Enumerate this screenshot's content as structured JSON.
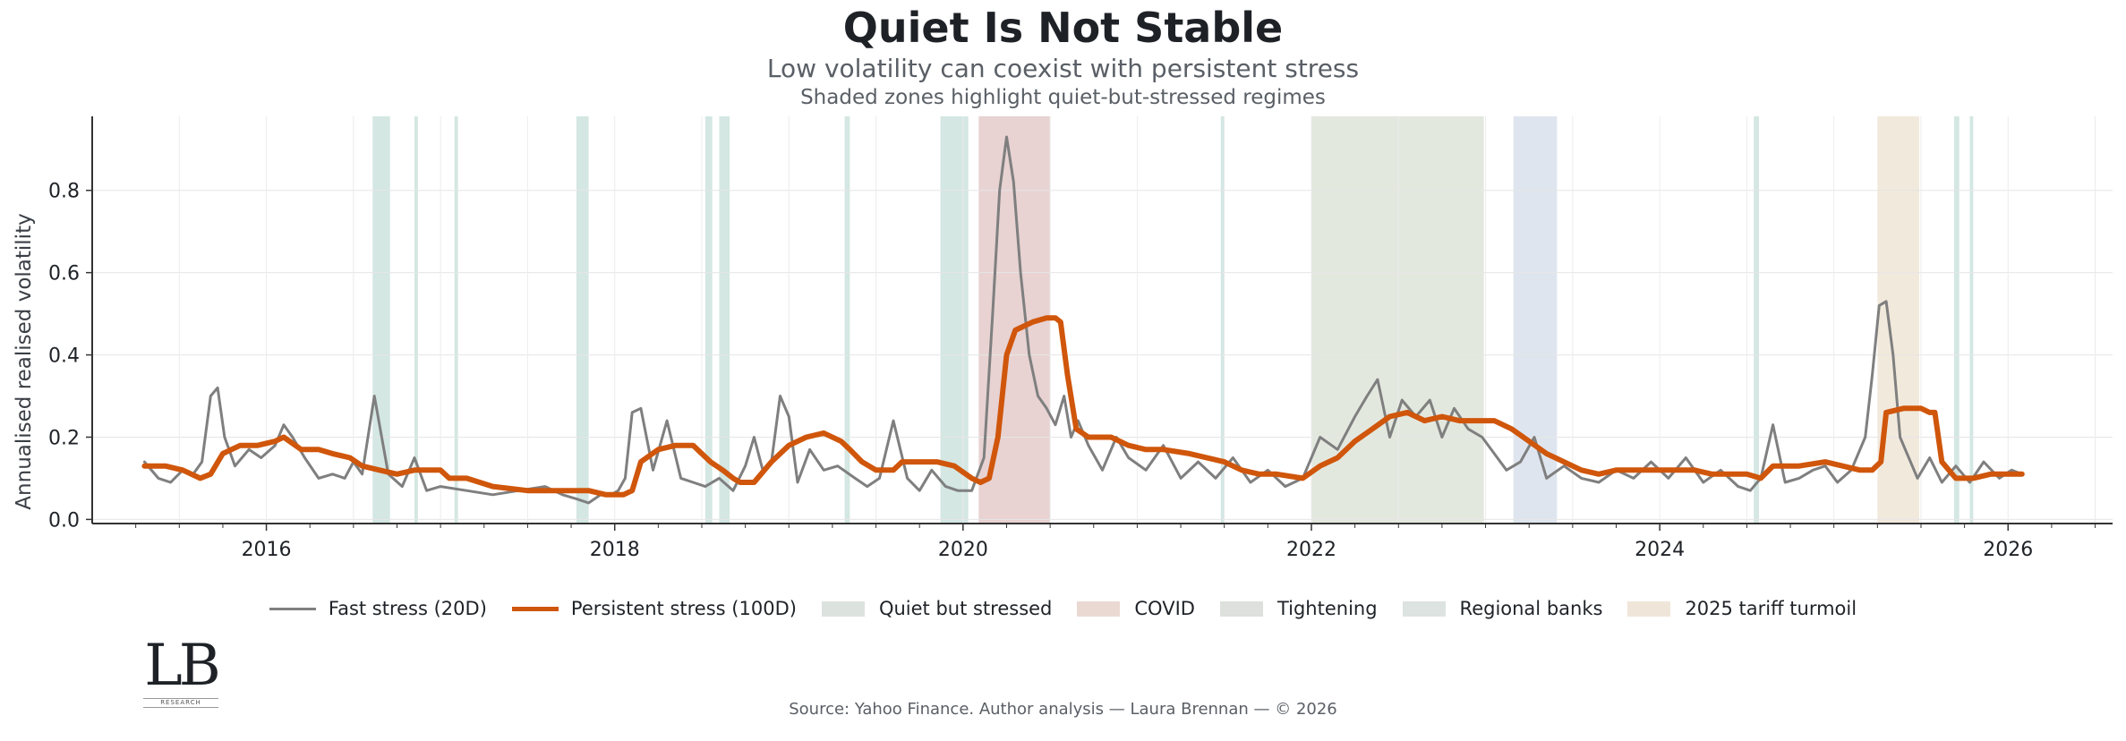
{
  "header": {
    "title": "Quiet Is Not Stable",
    "subtitle": "Low volatility can coexist with persistent stress",
    "subsubtitle": "Shaded zones highlight quiet-but-stressed regimes"
  },
  "chart_data": {
    "type": "line",
    "ylabel": "Annualised realised volatility",
    "xlabel": "",
    "xlim": [
      2015.0,
      2026.6
    ],
    "ylim": [
      -0.01,
      0.98
    ],
    "xticks": [
      2016,
      2018,
      2020,
      2022,
      2024,
      2026
    ],
    "xtick_labels": [
      "2016",
      "2018",
      "2020",
      "2022",
      "2024",
      "2026"
    ],
    "yticks": [
      0.0,
      0.2,
      0.4,
      0.6,
      0.8
    ],
    "ytick_labels": [
      "0.0",
      "0.2",
      "0.4",
      "0.6",
      "0.8"
    ],
    "grid": true,
    "series": [
      {
        "name": "Fast stress (20D)",
        "color": "#7f7f7f",
        "x": [
          2015.3,
          2015.38,
          2015.45,
          2015.52,
          2015.58,
          2015.63,
          2015.68,
          2015.72,
          2015.76,
          2015.82,
          2015.9,
          2015.97,
          2016.05,
          2016.1,
          2016.15,
          2016.22,
          2016.3,
          2016.38,
          2016.45,
          2016.5,
          2016.55,
          2016.62,
          2016.7,
          2016.78,
          2016.85,
          2016.92,
          2017.0,
          2017.15,
          2017.3,
          2017.45,
          2017.6,
          2017.7,
          2017.78,
          2017.85,
          2017.92,
          2017.98,
          2018.02,
          2018.06,
          2018.1,
          2018.15,
          2018.22,
          2018.3,
          2018.38,
          2018.45,
          2018.52,
          2018.6,
          2018.68,
          2018.75,
          2018.8,
          2018.85,
          2018.9,
          2018.95,
          2019.0,
          2019.05,
          2019.12,
          2019.2,
          2019.28,
          2019.38,
          2019.45,
          2019.52,
          2019.6,
          2019.68,
          2019.75,
          2019.82,
          2019.9,
          2019.97,
          2020.05,
          2020.12,
          2020.17,
          2020.21,
          2020.25,
          2020.29,
          2020.33,
          2020.38,
          2020.43,
          2020.48,
          2020.53,
          2020.58,
          2020.62,
          2020.66,
          2020.72,
          2020.8,
          2020.88,
          2020.95,
          2021.05,
          2021.15,
          2021.25,
          2021.35,
          2021.45,
          2021.55,
          2021.65,
          2021.75,
          2021.85,
          2021.95,
          2022.05,
          2022.15,
          2022.25,
          2022.32,
          2022.38,
          2022.45,
          2022.52,
          2022.6,
          2022.68,
          2022.75,
          2022.82,
          2022.9,
          2022.98,
          2023.05,
          2023.12,
          2023.2,
          2023.28,
          2023.35,
          2023.45,
          2023.55,
          2023.65,
          2023.75,
          2023.85,
          2023.95,
          2024.05,
          2024.15,
          2024.25,
          2024.35,
          2024.45,
          2024.52,
          2024.58,
          2024.65,
          2024.72,
          2024.8,
          2024.88,
          2024.95,
          2025.02,
          2025.1,
          2025.18,
          2025.22,
          2025.26,
          2025.3,
          2025.34,
          2025.38,
          2025.42,
          2025.48,
          2025.55,
          2025.62,
          2025.7,
          2025.78,
          2025.86,
          2025.95,
          2026.02,
          2026.08
        ],
        "values": [
          0.14,
          0.1,
          0.09,
          0.12,
          0.11,
          0.14,
          0.3,
          0.32,
          0.2,
          0.13,
          0.17,
          0.15,
          0.18,
          0.23,
          0.2,
          0.15,
          0.1,
          0.11,
          0.1,
          0.14,
          0.11,
          0.3,
          0.11,
          0.08,
          0.15,
          0.07,
          0.08,
          0.07,
          0.06,
          0.07,
          0.08,
          0.06,
          0.05,
          0.04,
          0.06,
          0.06,
          0.07,
          0.1,
          0.26,
          0.27,
          0.12,
          0.24,
          0.1,
          0.09,
          0.08,
          0.1,
          0.07,
          0.13,
          0.2,
          0.12,
          0.14,
          0.3,
          0.25,
          0.09,
          0.17,
          0.12,
          0.13,
          0.1,
          0.08,
          0.1,
          0.24,
          0.1,
          0.07,
          0.12,
          0.08,
          0.07,
          0.07,
          0.15,
          0.5,
          0.8,
          0.93,
          0.82,
          0.6,
          0.4,
          0.3,
          0.27,
          0.23,
          0.3,
          0.2,
          0.24,
          0.18,
          0.12,
          0.2,
          0.15,
          0.12,
          0.18,
          0.1,
          0.14,
          0.1,
          0.15,
          0.09,
          0.12,
          0.08,
          0.1,
          0.2,
          0.17,
          0.25,
          0.3,
          0.34,
          0.2,
          0.29,
          0.25,
          0.29,
          0.2,
          0.27,
          0.22,
          0.2,
          0.16,
          0.12,
          0.14,
          0.2,
          0.1,
          0.13,
          0.1,
          0.09,
          0.12,
          0.1,
          0.14,
          0.1,
          0.15,
          0.09,
          0.12,
          0.08,
          0.07,
          0.1,
          0.23,
          0.09,
          0.1,
          0.12,
          0.13,
          0.09,
          0.12,
          0.2,
          0.35,
          0.52,
          0.53,
          0.4,
          0.2,
          0.16,
          0.1,
          0.15,
          0.09,
          0.13,
          0.09,
          0.14,
          0.1,
          0.12,
          0.11
        ]
      },
      {
        "name": "Persistent stress (100D)",
        "color": "#d0560b",
        "x": [
          2015.3,
          2015.42,
          2015.52,
          2015.62,
          2015.68,
          2015.75,
          2015.85,
          2015.95,
          2016.05,
          2016.1,
          2016.2,
          2016.3,
          2016.38,
          2016.48,
          2016.55,
          2016.65,
          2016.75,
          2016.85,
          2016.9,
          2017.0,
          2017.05,
          2017.15,
          2017.3,
          2017.5,
          2017.7,
          2017.85,
          2017.95,
          2018.0,
          2018.05,
          2018.1,
          2018.15,
          2018.25,
          2018.35,
          2018.45,
          2018.55,
          2018.62,
          2018.68,
          2018.72,
          2018.8,
          2018.9,
          2019.0,
          2019.1,
          2019.2,
          2019.3,
          2019.35,
          2019.42,
          2019.5,
          2019.6,
          2019.65,
          2019.72,
          2019.85,
          2019.95,
          2020.05,
          2020.1,
          2020.15,
          2020.2,
          2020.25,
          2020.3,
          2020.4,
          2020.48,
          2020.53,
          2020.56,
          2020.6,
          2020.65,
          2020.72,
          2020.85,
          2020.95,
          2021.05,
          2021.15,
          2021.3,
          2021.5,
          2021.6,
          2021.7,
          2021.8,
          2021.95,
          2022.05,
          2022.15,
          2022.25,
          2022.35,
          2022.45,
          2022.55,
          2022.65,
          2022.75,
          2022.85,
          2022.95,
          2023.05,
          2023.15,
          2023.25,
          2023.35,
          2023.45,
          2023.55,
          2023.65,
          2023.75,
          2023.9,
          2024.05,
          2024.2,
          2024.3,
          2024.42,
          2024.5,
          2024.58,
          2024.65,
          2024.8,
          2024.95,
          2025.05,
          2025.15,
          2025.22,
          2025.27,
          2025.3,
          2025.4,
          2025.5,
          2025.55,
          2025.58,
          2025.62,
          2025.7,
          2025.8,
          2025.9,
          2026.0,
          2026.08
        ],
        "values": [
          0.13,
          0.13,
          0.12,
          0.1,
          0.11,
          0.16,
          0.18,
          0.18,
          0.19,
          0.2,
          0.17,
          0.17,
          0.16,
          0.15,
          0.13,
          0.12,
          0.11,
          0.12,
          0.12,
          0.12,
          0.1,
          0.1,
          0.08,
          0.07,
          0.07,
          0.07,
          0.06,
          0.06,
          0.06,
          0.07,
          0.14,
          0.17,
          0.18,
          0.18,
          0.14,
          0.12,
          0.1,
          0.09,
          0.09,
          0.14,
          0.18,
          0.2,
          0.21,
          0.19,
          0.17,
          0.14,
          0.12,
          0.12,
          0.14,
          0.14,
          0.14,
          0.13,
          0.1,
          0.09,
          0.1,
          0.2,
          0.4,
          0.46,
          0.48,
          0.49,
          0.49,
          0.48,
          0.35,
          0.22,
          0.2,
          0.2,
          0.18,
          0.17,
          0.17,
          0.16,
          0.14,
          0.12,
          0.11,
          0.11,
          0.1,
          0.13,
          0.15,
          0.19,
          0.22,
          0.25,
          0.26,
          0.24,
          0.25,
          0.24,
          0.24,
          0.24,
          0.22,
          0.19,
          0.16,
          0.14,
          0.12,
          0.11,
          0.12,
          0.12,
          0.12,
          0.12,
          0.11,
          0.11,
          0.11,
          0.1,
          0.13,
          0.13,
          0.14,
          0.13,
          0.12,
          0.12,
          0.14,
          0.26,
          0.27,
          0.27,
          0.26,
          0.26,
          0.14,
          0.1,
          0.1,
          0.11,
          0.11,
          0.11
        ]
      }
    ],
    "regimes": [
      {
        "name": "Quiet but stressed",
        "color": "#d4e7e2",
        "legend_color": "#dce3de",
        "spans": [
          [
            2016.61,
            2016.71
          ],
          [
            2016.85,
            2016.87
          ],
          [
            2017.08,
            2017.1
          ],
          [
            2017.78,
            2017.85
          ],
          [
            2018.52,
            2018.56
          ],
          [
            2018.6,
            2018.66
          ],
          [
            2019.32,
            2019.35
          ],
          [
            2019.87,
            2020.03
          ],
          [
            2021.48,
            2021.5
          ],
          [
            2024.54,
            2024.57
          ],
          [
            2025.69,
            2025.72
          ],
          [
            2025.78,
            2025.8
          ]
        ]
      },
      {
        "name": "COVID",
        "color": "#e8d2d2",
        "legend_color": "#ead9d3",
        "spans": [
          [
            2020.09,
            2020.5
          ]
        ]
      },
      {
        "name": "Tightening",
        "color": "#e3e8df",
        "legend_color": "#dde0dd",
        "spans": [
          [
            2022.0,
            2022.99
          ]
        ]
      },
      {
        "name": "Regional banks",
        "color": "#dfe5ee",
        "legend_color": "#dde3e0",
        "spans": [
          [
            2023.16,
            2023.41
          ]
        ]
      },
      {
        "name": "2025 tariff turmoil",
        "color": "#f1e9dc",
        "legend_color": "#efe5d9",
        "spans": [
          [
            2025.25,
            2025.49
          ]
        ]
      }
    ]
  },
  "branding": {
    "logo_text": "LB",
    "logo_sub": "RESEARCH"
  },
  "footer": {
    "source": "Source: Yahoo Finance. Author analysis — Laura Brennan — © 2026"
  }
}
